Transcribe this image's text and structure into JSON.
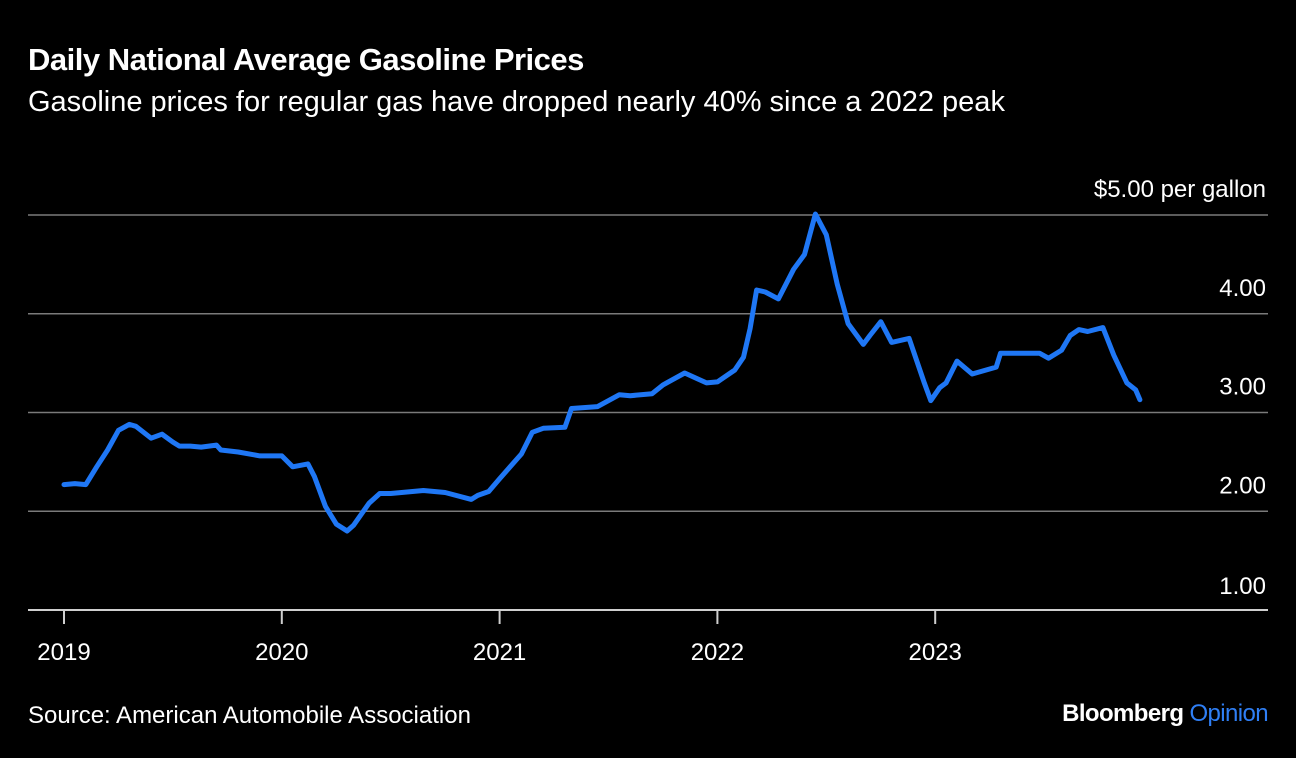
{
  "header": {
    "title": "Daily National Average Gasoline Prices",
    "subtitle": "Gasoline prices for regular gas have dropped nearly 40% since a 2022 peak"
  },
  "footer": {
    "source": "Source: American Automobile Association",
    "brand_primary": "Bloomberg",
    "brand_secondary": "Opinion"
  },
  "colors": {
    "background": "#000000",
    "line": "#1f77f5",
    "gridline": "#7a7a7a",
    "text": "#ffffff",
    "brand_accent": "#2f7ff5"
  },
  "chart_data": {
    "type": "line",
    "title": "Daily National Average Gasoline Prices",
    "subtitle": "Gasoline prices for regular gas have dropped nearly 40% since a 2022 peak",
    "xlabel": "",
    "ylabel": "",
    "y_unit_label": "per gallon",
    "xlim": [
      2019.0,
      2024.0
    ],
    "ylim": [
      1.0,
      5.0
    ],
    "y_ticks": [
      1,
      2,
      3,
      4,
      5
    ],
    "y_tick_labels": [
      "1.00",
      "2.00",
      "3.00",
      "4.00",
      "$5.00 per gallon"
    ],
    "x_ticks": [
      2019,
      2020,
      2021,
      2022,
      2023
    ],
    "x_tick_labels": [
      "2019",
      "2020",
      "2021",
      "2022",
      "2023"
    ],
    "grid": true,
    "y_axis_position": "right",
    "series": [
      {
        "x": [
          2019.0,
          2019.05,
          2019.1,
          2019.15,
          2019.2,
          2019.25,
          2019.3,
          2019.33,
          2019.4,
          2019.45,
          2019.5,
          2019.53,
          2019.58,
          2019.63,
          2019.7,
          2019.72,
          2019.8,
          2019.9,
          2020.0,
          2020.05,
          2020.12,
          2020.15,
          2020.2,
          2020.25,
          2020.3,
          2020.33,
          2020.4,
          2020.45,
          2020.5,
          2020.6,
          2020.65,
          2020.75,
          2020.87,
          2020.9,
          2020.95,
          2021.0,
          2021.1,
          2021.15,
          2021.2,
          2021.3,
          2021.33,
          2021.45,
          2021.55,
          2021.6,
          2021.7,
          2021.75,
          2021.85,
          2021.95,
          2022.0,
          2022.08,
          2022.12,
          2022.15,
          2022.18,
          2022.22,
          2022.28,
          2022.35,
          2022.4,
          2022.45,
          2022.5,
          2022.55,
          2022.6,
          2022.67,
          2022.7,
          2022.75,
          2022.8,
          2022.88,
          2022.95,
          2022.98,
          2023.02,
          2023.05,
          2023.1,
          2023.17,
          2023.28,
          2023.3,
          2023.4,
          2023.48,
          2023.52,
          2023.58,
          2023.62,
          2023.66,
          2023.7,
          2023.77,
          2023.82,
          2023.88,
          2023.92,
          2023.94
        ],
        "y": [
          2.27,
          2.28,
          2.27,
          2.45,
          2.62,
          2.82,
          2.88,
          2.86,
          2.74,
          2.78,
          2.7,
          2.66,
          2.66,
          2.65,
          2.67,
          2.62,
          2.6,
          2.56,
          2.56,
          2.45,
          2.48,
          2.35,
          2.05,
          1.87,
          1.8,
          1.86,
          2.08,
          2.18,
          2.18,
          2.2,
          2.21,
          2.19,
          2.12,
          2.16,
          2.2,
          2.33,
          2.58,
          2.8,
          2.84,
          2.85,
          3.04,
          3.06,
          3.18,
          3.17,
          3.19,
          3.28,
          3.4,
          3.3,
          3.31,
          3.43,
          3.56,
          3.85,
          4.24,
          4.22,
          4.15,
          4.45,
          4.6,
          5.01,
          4.8,
          4.3,
          3.9,
          3.69,
          3.78,
          3.92,
          3.71,
          3.75,
          3.3,
          3.12,
          3.25,
          3.3,
          3.52,
          3.39,
          3.46,
          3.6,
          3.6,
          3.6,
          3.55,
          3.63,
          3.78,
          3.84,
          3.82,
          3.86,
          3.58,
          3.3,
          3.23,
          3.13
        ]
      }
    ]
  }
}
